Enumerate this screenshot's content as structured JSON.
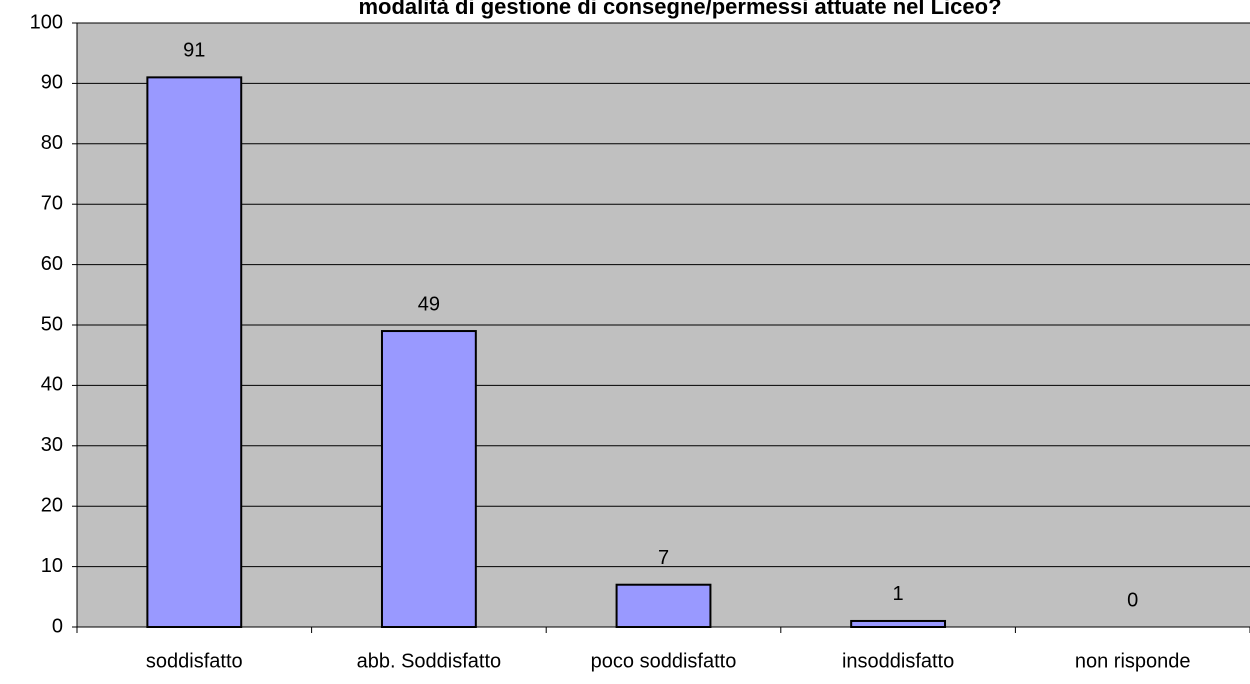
{
  "chart_data": {
    "type": "bar",
    "title": "modalità di gestione di consegne/permessi attuate nel Liceo?",
    "categories": [
      "soddisfatto",
      "abb. Soddisfatto",
      "poco soddisfatto",
      "insoddisfatto",
      "non risponde"
    ],
    "values": [
      91,
      49,
      7,
      1,
      0
    ],
    "color": "#9999ff",
    "ylim": [
      0,
      100
    ],
    "yticks": [
      0,
      10,
      20,
      30,
      40,
      50,
      60,
      70,
      80,
      90,
      100
    ],
    "grid": true
  }
}
